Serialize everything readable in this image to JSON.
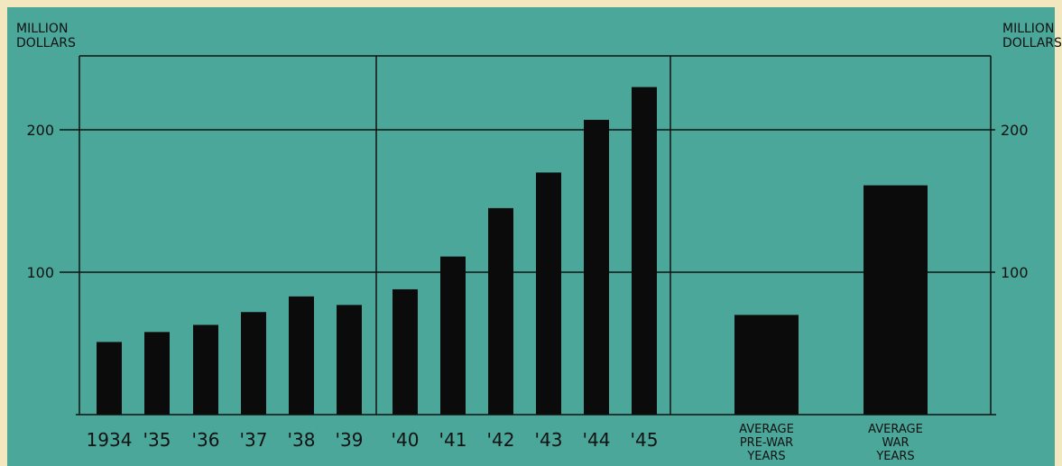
{
  "colors": {
    "paper": "#f2e7bf",
    "plot_background": "#4aa79a",
    "bars": "#0b0b0b",
    "lines": "#111111"
  },
  "left_axis_unit": [
    "MILLION",
    "DOLLARS"
  ],
  "right_axis_unit": [
    "MILLION",
    "DOLLARS"
  ],
  "chart_data": {
    "type": "bar",
    "title": "",
    "xlabel": "",
    "ylabel": "MILLION DOLLARS",
    "ylim": [
      0,
      250
    ],
    "y_ticks": [
      100,
      200
    ],
    "y_tick_labels": [
      "100",
      "200"
    ],
    "grid": true,
    "legend": "none",
    "panels": [
      {
        "categories": [
          "1934",
          "'35",
          "'36",
          "'37",
          "'38",
          "'39"
        ],
        "values": [
          51,
          58,
          63,
          72,
          83,
          77
        ]
      },
      {
        "categories": [
          "'40",
          "'41",
          "'42",
          "'43",
          "'44",
          "'45"
        ],
        "values": [
          88,
          111,
          145,
          170,
          207,
          230
        ]
      },
      {
        "categories": [
          [
            "AVERAGE",
            "PRE-WAR",
            "YEARS"
          ],
          [
            "AVERAGE",
            "WAR",
            "YEARS"
          ]
        ],
        "values": [
          70,
          161
        ]
      }
    ]
  }
}
